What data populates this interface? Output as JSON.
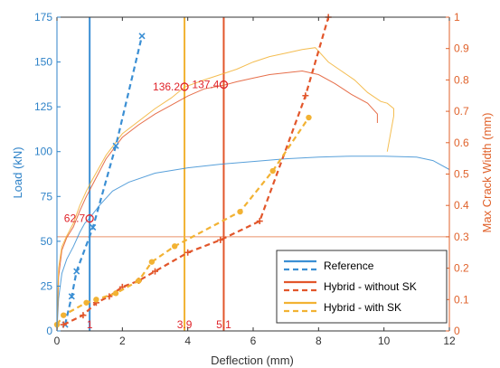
{
  "chart_data": {
    "type": "line",
    "title": "",
    "xlabel": "Deflection (mm)",
    "ylabel_left": "Load (kN)",
    "ylabel_right": "Max Crack Width (mm)",
    "xlim": [
      0,
      12
    ],
    "ylim_left": [
      0,
      175
    ],
    "ylim_right": [
      0,
      1
    ],
    "xticks": [
      0,
      2,
      4,
      6,
      8,
      10,
      12
    ],
    "yticks_left": [
      0,
      25,
      50,
      75,
      100,
      125,
      150,
      175
    ],
    "yticks_right": [
      0,
      0.1,
      0.2,
      0.3,
      0.4,
      0.5,
      0.6,
      0.7,
      0.8,
      0.9,
      1
    ],
    "grid": false,
    "legend_position": "bottom-right",
    "colors": {
      "reference": "#3b8fd4",
      "hybrid_without_sk": "#e2562b",
      "hybrid_with_sk": "#f2b233",
      "annotation": "#e0242a",
      "right_axis": "#e0622b",
      "left_axis": "#2f83c8"
    },
    "legend": [
      {
        "label": "Reference",
        "color": "#3b8fd4"
      },
      {
        "label": "Hybrid - without SK",
        "color": "#e2562b"
      },
      {
        "label": "Hybrid - with SK",
        "color": "#f2b233"
      }
    ],
    "load_series": [
      {
        "name": "Reference",
        "color": "#3b8fd4",
        "x": [
          0,
          0.05,
          0.15,
          0.3,
          0.5,
          0.7,
          0.85,
          1.0,
          1.3,
          1.7,
          2.2,
          3.0,
          4.0,
          5.0,
          6.0,
          7.0,
          8.0,
          9.0,
          10.0,
          11.0,
          11.5,
          12.0
        ],
        "y": [
          0,
          18,
          32,
          40,
          47,
          55,
          60,
          63,
          70,
          78,
          83,
          88,
          91,
          93,
          94.5,
          96,
          97,
          97.5,
          97.5,
          97,
          95,
          90
        ]
      },
      {
        "name": "Hybrid - without SK",
        "color": "#e2562b",
        "x": [
          0,
          0.05,
          0.15,
          0.3,
          0.5,
          0.7,
          0.9,
          1.1,
          1.5,
          2.0,
          2.5,
          3.0,
          3.5,
          4.0,
          4.5,
          5.1,
          5.5,
          6.0,
          6.5,
          7.0,
          7.5,
          8.0,
          8.5,
          9.0,
          9.5,
          9.8,
          9.8
        ],
        "y": [
          0,
          30,
          45,
          52,
          58,
          67,
          75,
          82,
          96,
          108,
          115,
          121,
          126,
          131,
          135,
          137,
          139,
          141,
          143,
          144,
          145,
          143,
          138,
          132,
          127,
          121,
          116
        ]
      },
      {
        "name": "Hybrid - with SK",
        "color": "#f2b233",
        "x": [
          0,
          0.05,
          0.15,
          0.3,
          0.5,
          0.7,
          0.9,
          1.1,
          1.5,
          2.0,
          2.5,
          3.0,
          3.5,
          3.9,
          4.5,
          5.0,
          5.5,
          6.0,
          6.5,
          7.0,
          7.5,
          7.9,
          8.3,
          8.7,
          9.1,
          9.5,
          9.9,
          10.1,
          10.3,
          10.3,
          10.1
        ],
        "y": [
          0,
          35,
          47,
          53,
          60,
          70,
          78,
          85,
          98,
          110,
          117,
          124,
          130,
          136,
          140,
          143,
          146,
          150,
          153,
          155,
          157,
          158,
          150,
          145,
          140,
          133,
          128,
          127,
          124,
          120,
          100
        ]
      }
    ],
    "crack_series": [
      {
        "name": "Reference",
        "color": "#3b8fd4",
        "x": [
          0.25,
          0.45,
          0.6,
          1.1,
          1.8,
          2.6
        ],
        "y": [
          0.02,
          0.11,
          0.19,
          0.33,
          0.59,
          0.94
        ]
      },
      {
        "name": "Hybrid - without SK",
        "color": "#e2562b",
        "x": [
          0.2,
          0.8,
          1.2,
          1.6,
          2.0,
          2.5,
          3.0,
          4.0,
          5.0,
          6.2,
          7.6,
          8.3
        ],
        "y": [
          0.02,
          0.05,
          0.09,
          0.11,
          0.14,
          0.16,
          0.19,
          0.25,
          0.29,
          0.35,
          0.75,
          1.0
        ]
      },
      {
        "name": "Hybrid - with SK",
        "color": "#f2b233",
        "x": [
          0.0,
          0.2,
          0.9,
          1.2,
          1.8,
          2.5,
          2.9,
          3.6,
          5.6,
          6.6,
          7.7
        ],
        "y": [
          0.02,
          0.05,
          0.09,
          0.1,
          0.12,
          0.16,
          0.22,
          0.27,
          0.38,
          0.51,
          0.68
        ]
      }
    ],
    "markers": [
      {
        "series": "Reference",
        "x": 1.0,
        "y": 62.7,
        "label": "62.7"
      },
      {
        "series": "Hybrid - with SK",
        "x": 3.9,
        "y": 136.2,
        "label": "136.2"
      },
      {
        "series": "Hybrid - without SK",
        "x": 5.1,
        "y": 137.4,
        "label": "137.4"
      }
    ],
    "vertical_lines": [
      {
        "series": "Reference",
        "x": 1.0,
        "label": "1"
      },
      {
        "series": "Hybrid - with SK",
        "x": 3.9,
        "label": "3.9"
      },
      {
        "series": "Hybrid - without SK",
        "x": 5.1,
        "label": "5.1"
      }
    ],
    "horizontal_lines": [
      {
        "axis": "right",
        "y": 0.3
      }
    ]
  }
}
